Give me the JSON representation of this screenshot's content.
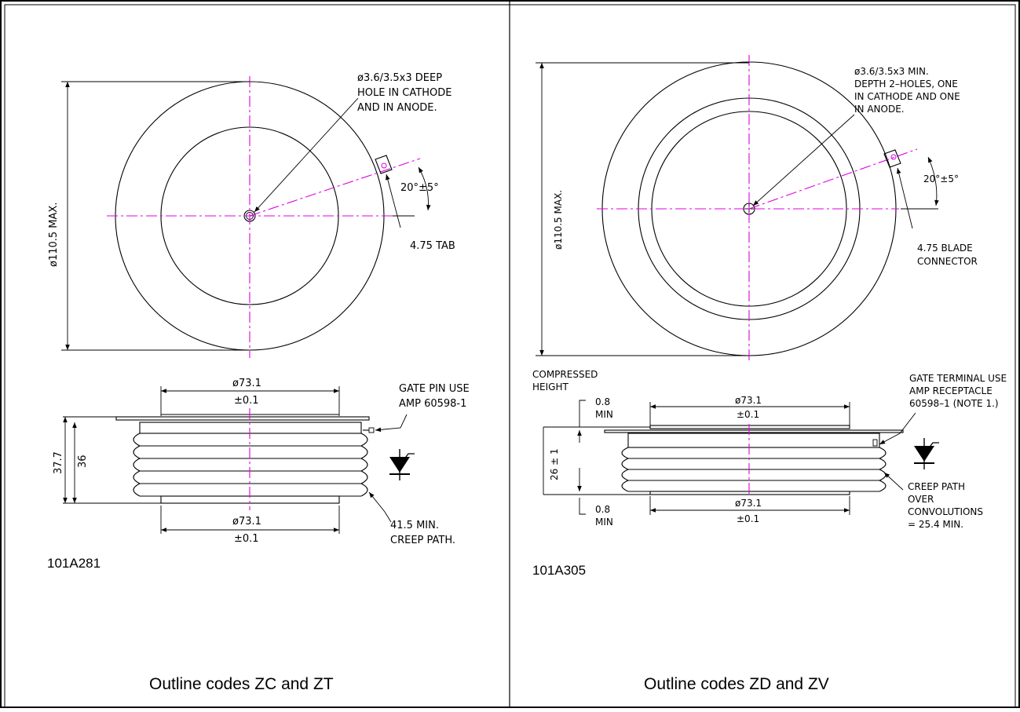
{
  "panels": [
    {
      "caption": "Outline codes ZC and ZT",
      "part_number": "101A281",
      "top_view": {
        "hole_note": [
          "ø3.6/3.5x3 DEEP",
          "HOLE IN CATHODE",
          "AND IN ANODE."
        ],
        "diameter": "ø110.5 MAX.",
        "angle": "20°±5°",
        "tab_note": [
          "4.75 TAB"
        ]
      },
      "side_view": {
        "top_dia": [
          "ø73.1",
          "±0.1"
        ],
        "gate_note": [
          "GATE PIN USE",
          "AMP 60598-1"
        ],
        "height_outer": "37.7",
        "height_inner": "36",
        "bottom_dia": [
          "ø73.1",
          "±0.1"
        ],
        "creep_note": [
          "41.5 MIN.",
          "CREEP PATH."
        ]
      }
    },
    {
      "caption": "Outline codes ZD and ZV",
      "part_number": "101A305",
      "top_view": {
        "hole_note": [
          "ø3.6/3.5x3 MIN.",
          "DEPTH 2–HOLES, ONE",
          "IN CATHODE AND ONE",
          "IN ANODE."
        ],
        "diameter": "ø110.5 MAX.",
        "angle": "20°±5°",
        "tab_note": [
          "4.75 BLADE",
          "CONNECTOR"
        ]
      },
      "side_view": {
        "compressed": [
          "COMPRESSED",
          "HEIGHT"
        ],
        "min_top": [
          "0.8",
          "MIN"
        ],
        "top_dia": [
          "ø73.1",
          "±0.1"
        ],
        "gate_note": [
          "GATE TERMINAL USE",
          "AMP RECEPTACLE",
          "60598–1 (NOTE 1.)"
        ],
        "height": "26 ± 1",
        "bottom_dia": [
          "ø73.1",
          "±0.1"
        ],
        "min_bottom": [
          "0.8",
          "MIN"
        ],
        "creep_note": [
          "CREEP PATH",
          "OVER",
          "CONVOLUTIONS",
          "= 25.4 MIN."
        ]
      }
    }
  ]
}
